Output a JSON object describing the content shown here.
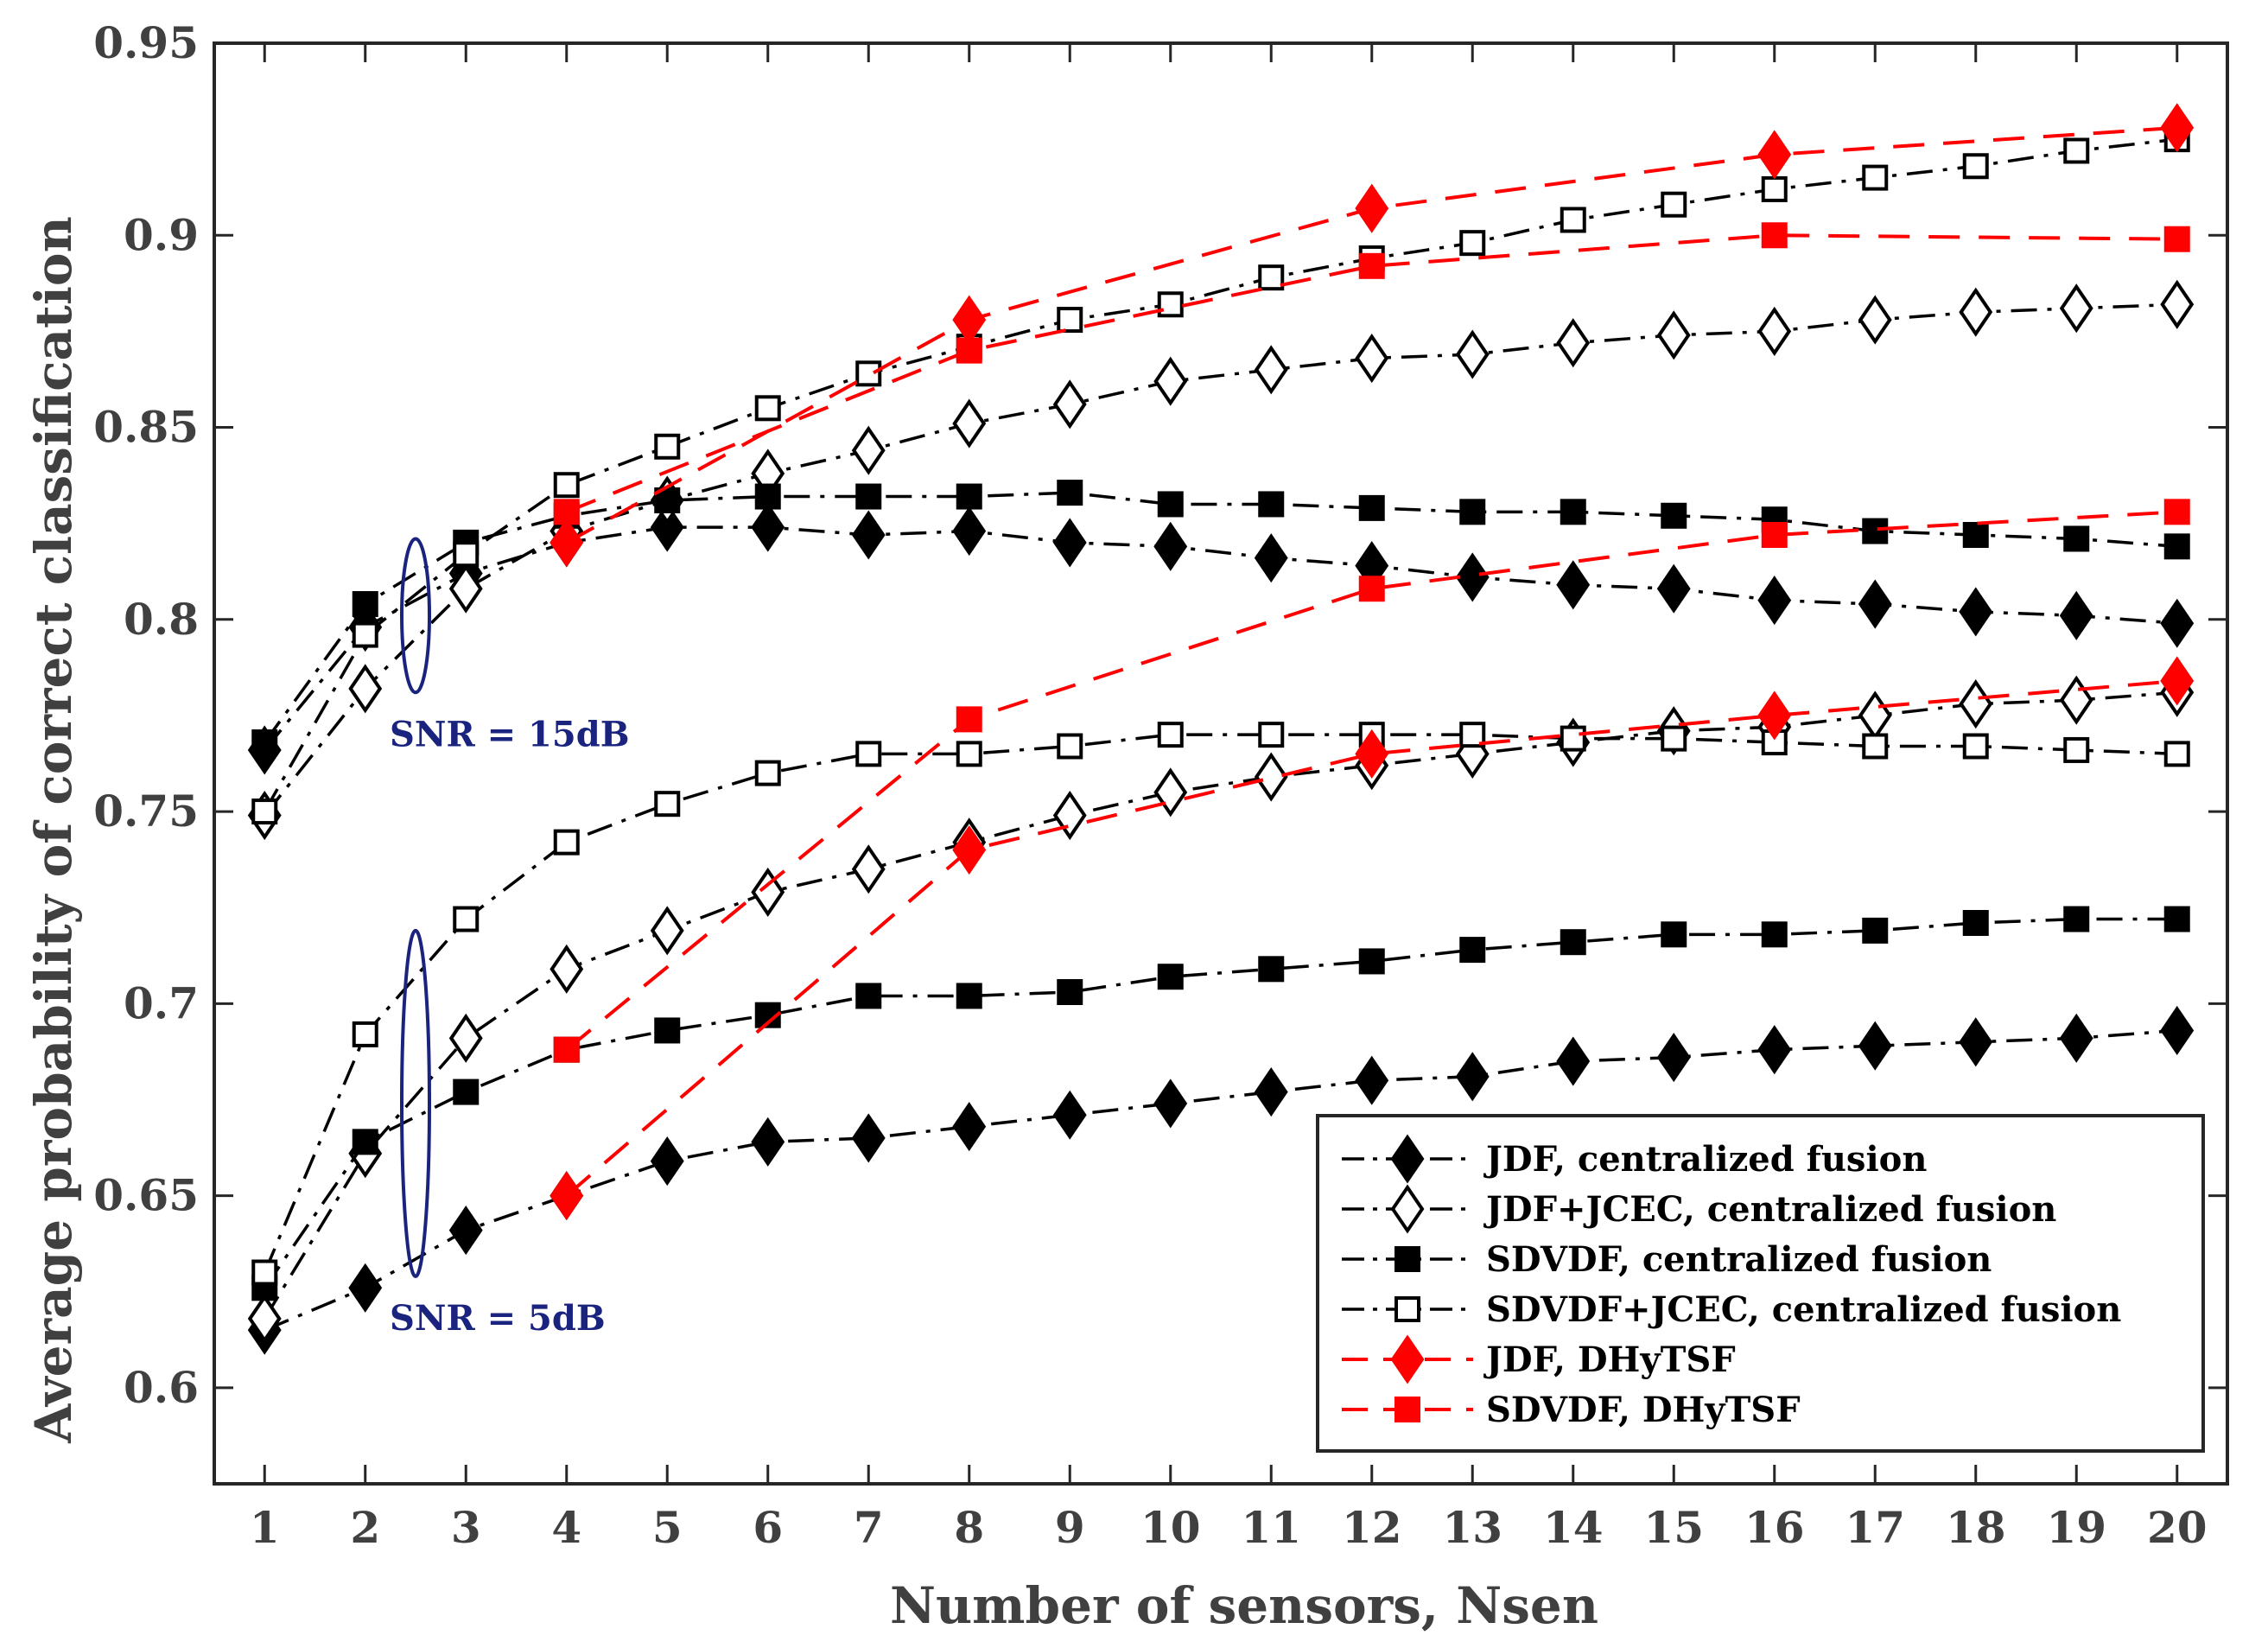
{
  "chart_data": {
    "type": "line",
    "title": "",
    "xlabel": "Number of sensors, Nsen",
    "ylabel": "Average probability of correct classification",
    "xlim": [
      0.5,
      20.5
    ],
    "ylim": [
      0.575,
      0.95
    ],
    "xticks": [
      1,
      2,
      3,
      4,
      5,
      6,
      7,
      8,
      9,
      10,
      11,
      12,
      13,
      14,
      15,
      16,
      17,
      18,
      19,
      20
    ],
    "yticks": [
      0.6,
      0.65,
      0.7,
      0.75,
      0.8,
      0.85,
      0.9,
      0.95
    ],
    "ytick_labels": [
      "0.6",
      "0.65",
      "0.7",
      "0.75",
      "0.8",
      "0.85",
      "0.9",
      "0.95"
    ],
    "grid": false,
    "legend_position": "bottom-right",
    "legend": [
      "JDF, centralized fusion",
      "JDF+JCEC, centralized fusion",
      "SDVDF, centralized fusion",
      "SDVDF+JCEC, centralized fusion",
      "JDF, DHyTSF",
      "SDVDF, DHyTSF"
    ],
    "series": [
      {
        "name": "JDF, centralized fusion",
        "snr": "15dB",
        "style": "dashdot",
        "marker": "diamond-filled",
        "color": "#000000",
        "x": [
          1,
          2,
          3,
          4,
          5,
          6,
          7,
          8,
          9,
          10,
          11,
          12,
          13,
          14,
          15,
          16,
          17,
          18,
          19,
          20
        ],
        "y": [
          0.766,
          0.798,
          0.812,
          0.82,
          0.824,
          0.824,
          0.822,
          0.823,
          0.82,
          0.819,
          0.816,
          0.814,
          0.811,
          0.809,
          0.808,
          0.805,
          0.804,
          0.802,
          0.801,
          0.799
        ]
      },
      {
        "name": "JDF+JCEC, centralized fusion",
        "snr": "15dB",
        "style": "dashdot",
        "marker": "diamond-open",
        "color": "#000000",
        "x": [
          1,
          2,
          3,
          4,
          5,
          6,
          7,
          8,
          9,
          10,
          11,
          12,
          13,
          14,
          15,
          16,
          17,
          18,
          19,
          20
        ],
        "y": [
          0.749,
          0.782,
          0.808,
          0.823,
          0.831,
          0.838,
          0.844,
          0.851,
          0.856,
          0.862,
          0.865,
          0.868,
          0.869,
          0.872,
          0.874,
          0.875,
          0.878,
          0.88,
          0.881,
          0.882
        ]
      },
      {
        "name": "SDVDF, centralized fusion",
        "snr": "15dB",
        "style": "dashdot",
        "marker": "square-filled",
        "color": "#000000",
        "x": [
          1,
          2,
          3,
          4,
          5,
          6,
          7,
          8,
          9,
          10,
          11,
          12,
          13,
          14,
          15,
          16,
          17,
          18,
          19,
          20
        ],
        "y": [
          0.768,
          0.804,
          0.82,
          0.827,
          0.831,
          0.832,
          0.832,
          0.832,
          0.833,
          0.83,
          0.83,
          0.829,
          0.828,
          0.828,
          0.827,
          0.826,
          0.823,
          0.822,
          0.821,
          0.819
        ]
      },
      {
        "name": "SDVDF+JCEC, centralized fusion",
        "snr": "15dB",
        "style": "dashdot",
        "marker": "square-open",
        "color": "#000000",
        "x": [
          1,
          2,
          3,
          4,
          5,
          6,
          7,
          8,
          9,
          10,
          11,
          12,
          13,
          14,
          15,
          16,
          17,
          18,
          19,
          20
        ],
        "y": [
          0.75,
          0.796,
          0.817,
          0.835,
          0.845,
          0.855,
          0.864,
          0.871,
          0.878,
          0.882,
          0.889,
          0.894,
          0.898,
          0.904,
          0.908,
          0.912,
          0.915,
          0.918,
          0.922,
          0.925
        ]
      },
      {
        "name": "JDF, DHyTSF",
        "snr": "15dB",
        "style": "dashed",
        "marker": "diamond-filled",
        "color": "#ff0000",
        "x": [
          4,
          8,
          12,
          16,
          20
        ],
        "y": [
          0.82,
          0.878,
          0.907,
          0.921,
          0.928
        ]
      },
      {
        "name": "SDVDF, DHyTSF",
        "snr": "15dB",
        "style": "dashed",
        "marker": "square-filled",
        "color": "#ff0000",
        "x": [
          4,
          8,
          12,
          16,
          20
        ],
        "y": [
          0.828,
          0.87,
          0.892,
          0.9,
          0.899
        ]
      },
      {
        "name": "JDF, centralized fusion",
        "snr": "5dB",
        "style": "dashdot",
        "marker": "diamond-filled",
        "color": "#000000",
        "x": [
          1,
          2,
          3,
          4,
          5,
          6,
          7,
          8,
          9,
          10,
          11,
          12,
          13,
          14,
          15,
          16,
          17,
          18,
          19,
          20
        ],
        "y": [
          0.615,
          0.626,
          0.641,
          0.65,
          0.659,
          0.664,
          0.665,
          0.668,
          0.671,
          0.674,
          0.677,
          0.68,
          0.681,
          0.685,
          0.686,
          0.688,
          0.689,
          0.69,
          0.691,
          0.693
        ]
      },
      {
        "name": "JDF+JCEC, centralized fusion",
        "snr": "5dB",
        "style": "dashdot",
        "marker": "diamond-open",
        "color": "#000000",
        "x": [
          1,
          2,
          3,
          4,
          5,
          6,
          7,
          8,
          9,
          10,
          11,
          12,
          13,
          14,
          15,
          16,
          17,
          18,
          19,
          20
        ],
        "y": [
          0.618,
          0.661,
          0.691,
          0.709,
          0.719,
          0.729,
          0.735,
          0.742,
          0.749,
          0.755,
          0.759,
          0.762,
          0.765,
          0.768,
          0.771,
          0.772,
          0.775,
          0.778,
          0.779,
          0.781
        ]
      },
      {
        "name": "SDVDF, centralized fusion",
        "snr": "5dB",
        "style": "dashdot",
        "marker": "square-filled",
        "color": "#000000",
        "x": [
          1,
          2,
          3,
          4,
          5,
          6,
          7,
          8,
          9,
          10,
          11,
          12,
          13,
          14,
          15,
          16,
          17,
          18,
          19,
          20
        ],
        "y": [
          0.626,
          0.664,
          0.677,
          0.688,
          0.693,
          0.697,
          0.702,
          0.702,
          0.703,
          0.707,
          0.709,
          0.711,
          0.714,
          0.716,
          0.718,
          0.718,
          0.719,
          0.721,
          0.722,
          0.722
        ]
      },
      {
        "name": "SDVDF+JCEC, centralized fusion",
        "snr": "5dB",
        "style": "dashdot",
        "marker": "square-open",
        "color": "#000000",
        "x": [
          1,
          2,
          3,
          4,
          5,
          6,
          7,
          8,
          9,
          10,
          11,
          12,
          13,
          14,
          15,
          16,
          17,
          18,
          19,
          20
        ],
        "y": [
          0.63,
          0.692,
          0.722,
          0.742,
          0.752,
          0.76,
          0.765,
          0.765,
          0.767,
          0.77,
          0.77,
          0.77,
          0.77,
          0.769,
          0.769,
          0.768,
          0.767,
          0.767,
          0.766,
          0.765
        ]
      },
      {
        "name": "JDF, DHyTSF",
        "snr": "5dB",
        "style": "dashed",
        "marker": "diamond-filled",
        "color": "#ff0000",
        "x": [
          4,
          8,
          12,
          16,
          20
        ],
        "y": [
          0.65,
          0.74,
          0.765,
          0.775,
          0.784
        ]
      },
      {
        "name": "SDVDF, DHyTSF",
        "snr": "5dB",
        "style": "dashed",
        "marker": "square-filled",
        "color": "#ff0000",
        "x": [
          4,
          8,
          12,
          16,
          20
        ],
        "y": [
          0.688,
          0.774,
          0.808,
          0.822,
          0.828
        ]
      }
    ],
    "annotations": [
      {
        "text": "SNR = 15dB",
        "ellipse_x": 2.5,
        "ellipse_y": 0.801,
        "ellipse_half_height": 0.02,
        "color": "#1a237e"
      },
      {
        "text": "SNR = 5dB",
        "ellipse_x": 2.5,
        "ellipse_y": 0.674,
        "ellipse_half_height": 0.045,
        "color": "#1a237e"
      }
    ]
  }
}
